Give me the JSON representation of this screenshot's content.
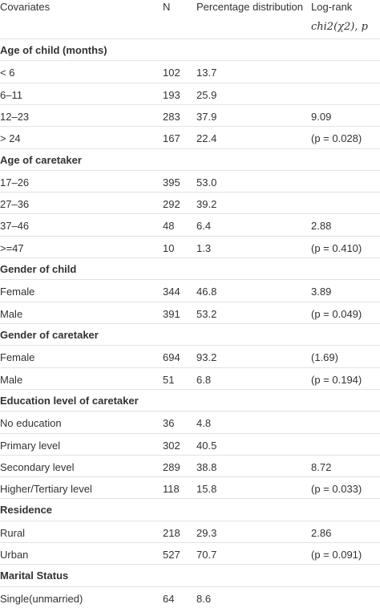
{
  "table": {
    "header": [
      "Covariates",
      "N",
      "Percentage distribution",
      [
        "Log-rank",
        "chi2(χ2), p"
      ]
    ],
    "rows": [
      {
        "section": "Age of child (months)"
      },
      [
        "< 6",
        "102",
        "13.7"
      ],
      [
        "6–11",
        "193",
        "25.9"
      ],
      [
        "12–23",
        "283",
        "37.9",
        "9.09"
      ],
      [
        "> 24",
        "167",
        "22.4",
        "(p = 0.028)"
      ],
      {
        "section": "Age of caretaker"
      },
      [
        "17–26",
        "395",
        "53.0"
      ],
      [
        "27–36",
        "292",
        "39.2"
      ],
      [
        "37–46",
        "48",
        "6.4",
        "2.88"
      ],
      [
        ">=47",
        "10",
        "1.3",
        "(p = 0.410)"
      ],
      {
        "section": "Gender of child"
      },
      [
        "Female",
        "344",
        "46.8",
        "3.89"
      ],
      [
        "Male",
        "391",
        "53.2",
        "(p = 0.049)"
      ],
      {
        "section": "Gender of caretaker"
      },
      [
        "Female",
        "694",
        "93.2",
        "(1.69)"
      ],
      [
        "Male",
        "51",
        "6.8",
        "(p = 0.194)"
      ],
      {
        "section": "Education level of caretaker"
      },
      [
        "No education",
        "36",
        "4.8"
      ],
      [
        "Primary level",
        "302",
        "40.5"
      ],
      [
        "Secondary level",
        "289",
        "38.8",
        "8.72"
      ],
      [
        "Higher/Tertiary level",
        "118",
        "15.8",
        "(p = 0.033)"
      ],
      {
        "section": "Residence"
      },
      [
        "Rural",
        "218",
        "29.3",
        "2.86"
      ],
      [
        "Urban",
        "527",
        "70.7",
        "(p = 0.091)"
      ],
      {
        "section": "Marital Status"
      },
      [
        "Single(unmarried)",
        "64",
        "8.6"
      ]
    ]
  }
}
